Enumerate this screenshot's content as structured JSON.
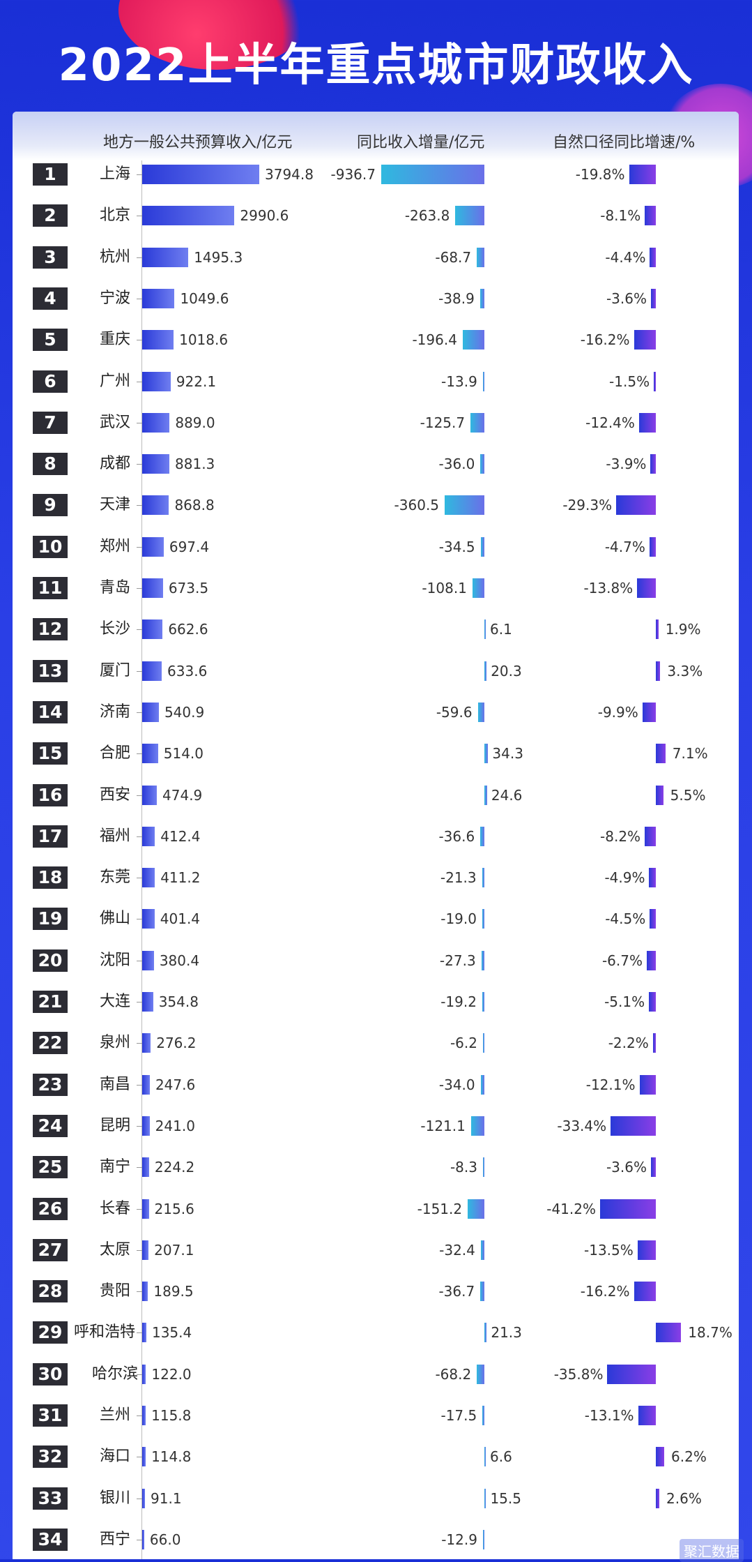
{
  "title": "2022上半年重点城市财政收入",
  "headers": {
    "revenue": "地方一般公共预算收入/亿元",
    "increase": "同比收入增量/亿元",
    "growth": "自然口径同比增速/%"
  },
  "watermark": "聚汇数据",
  "colors": {
    "bg": "#2234e0",
    "bar_revenue": "#3a48de",
    "bar_increase": "#2fb9df",
    "bar_growth": "#5a30e0"
  },
  "chart_data": {
    "type": "table",
    "title": "2022上半年重点城市财政收入",
    "columns": [
      "地方一般公共预算收入/亿元",
      "同比收入增量/亿元",
      "自然口径同比增速/%"
    ],
    "rows": [
      {
        "rank": "1",
        "city": "上海",
        "revenue": "3794.8",
        "increase": "-936.7",
        "growth": "-19.8%"
      },
      {
        "rank": "2",
        "city": "北京",
        "revenue": "2990.6",
        "increase": "-263.8",
        "growth": "-8.1%"
      },
      {
        "rank": "3",
        "city": "杭州",
        "revenue": "1495.3",
        "increase": "-68.7",
        "growth": "-4.4%"
      },
      {
        "rank": "4",
        "city": "宁波",
        "revenue": "1049.6",
        "increase": "-38.9",
        "growth": "-3.6%"
      },
      {
        "rank": "5",
        "city": "重庆",
        "revenue": "1018.6",
        "increase": "-196.4",
        "growth": "-16.2%"
      },
      {
        "rank": "6",
        "city": "广州",
        "revenue": "922.1",
        "increase": "-13.9",
        "growth": "-1.5%"
      },
      {
        "rank": "7",
        "city": "武汉",
        "revenue": "889.0",
        "increase": "-125.7",
        "growth": "-12.4%"
      },
      {
        "rank": "8",
        "city": "成都",
        "revenue": "881.3",
        "increase": "-36.0",
        "growth": "-3.9%"
      },
      {
        "rank": "9",
        "city": "天津",
        "revenue": "868.8",
        "increase": "-360.5",
        "growth": "-29.3%"
      },
      {
        "rank": "10",
        "city": "郑州",
        "revenue": "697.4",
        "increase": "-34.5",
        "growth": "-4.7%"
      },
      {
        "rank": "11",
        "city": "青岛",
        "revenue": "673.5",
        "increase": "-108.1",
        "growth": "-13.8%"
      },
      {
        "rank": "12",
        "city": "长沙",
        "revenue": "662.6",
        "increase": "6.1",
        "growth": "1.9%"
      },
      {
        "rank": "13",
        "city": "厦门",
        "revenue": "633.6",
        "increase": "20.3",
        "growth": "3.3%"
      },
      {
        "rank": "14",
        "city": "济南",
        "revenue": "540.9",
        "increase": "-59.6",
        "growth": "-9.9%"
      },
      {
        "rank": "15",
        "city": "合肥",
        "revenue": "514.0",
        "increase": "34.3",
        "growth": "7.1%"
      },
      {
        "rank": "16",
        "city": "西安",
        "revenue": "474.9",
        "increase": "24.6",
        "growth": "5.5%"
      },
      {
        "rank": "17",
        "city": "福州",
        "revenue": "412.4",
        "increase": "-36.6",
        "growth": "-8.2%"
      },
      {
        "rank": "18",
        "city": "东莞",
        "revenue": "411.2",
        "increase": "-21.3",
        "growth": "-4.9%"
      },
      {
        "rank": "19",
        "city": "佛山",
        "revenue": "401.4",
        "increase": "-19.0",
        "growth": "-4.5%"
      },
      {
        "rank": "20",
        "city": "沈阳",
        "revenue": "380.4",
        "increase": "-27.3",
        "growth": "-6.7%"
      },
      {
        "rank": "21",
        "city": "大连",
        "revenue": "354.8",
        "increase": "-19.2",
        "growth": "-5.1%"
      },
      {
        "rank": "22",
        "city": "泉州",
        "revenue": "276.2",
        "increase": "-6.2",
        "growth": "-2.2%"
      },
      {
        "rank": "23",
        "city": "南昌",
        "revenue": "247.6",
        "increase": "-34.0",
        "growth": "-12.1%"
      },
      {
        "rank": "24",
        "city": "昆明",
        "revenue": "241.0",
        "increase": "-121.1",
        "growth": "-33.4%"
      },
      {
        "rank": "25",
        "city": "南宁",
        "revenue": "224.2",
        "increase": "-8.3",
        "growth": "-3.6%"
      },
      {
        "rank": "26",
        "city": "长春",
        "revenue": "215.6",
        "increase": "-151.2",
        "growth": "-41.2%"
      },
      {
        "rank": "27",
        "city": "太原",
        "revenue": "207.1",
        "increase": "-32.4",
        "growth": "-13.5%"
      },
      {
        "rank": "28",
        "city": "贵阳",
        "revenue": "189.5",
        "increase": "-36.7",
        "growth": "-16.2%"
      },
      {
        "rank": "29",
        "city": "呼和浩特",
        "revenue": "135.4",
        "increase": "21.3",
        "growth": "18.7%"
      },
      {
        "rank": "30",
        "city": "哈尔滨",
        "revenue": "122.0",
        "increase": "-68.2",
        "growth": "-35.8%"
      },
      {
        "rank": "31",
        "city": "兰州",
        "revenue": "115.8",
        "increase": "-17.5",
        "growth": "-13.1%"
      },
      {
        "rank": "32",
        "city": "海口",
        "revenue": "114.8",
        "increase": "6.6",
        "growth": "6.2%"
      },
      {
        "rank": "33",
        "city": "银川",
        "revenue": "91.1",
        "increase": "15.5",
        "growth": "2.6%"
      },
      {
        "rank": "34",
        "city": "西宁",
        "revenue": "66.0",
        "increase": "-12.9",
        "growth": ""
      }
    ]
  }
}
